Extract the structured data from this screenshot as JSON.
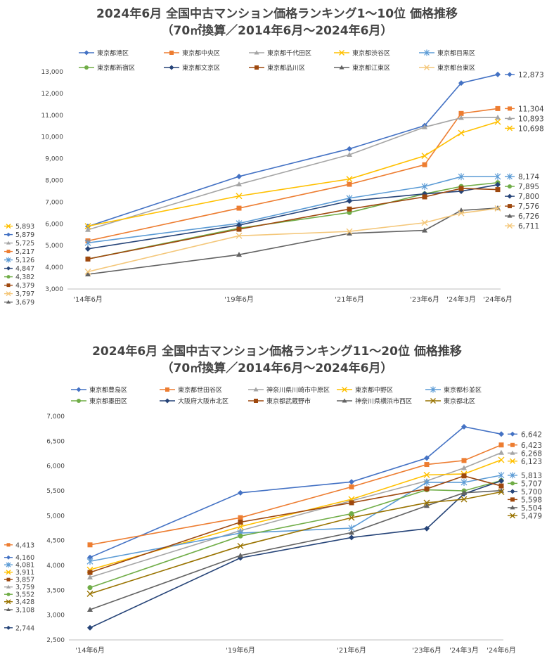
{
  "chart_data": [
    {
      "type": "line",
      "title": "2024年6月 全国中古マンション価格ランキング1～10位 価格推移",
      "subtitle": "（70㎡換算／2014年6月～2024年6月）",
      "categories": [
        "'14年6月",
        "'19年6月",
        "'21年6月",
        "'23年6月",
        "'24年3月",
        "'24年6月"
      ],
      "ylim": [
        3000,
        13000
      ],
      "yticks": [
        "3,000",
        "4,000",
        "5,000",
        "6,000",
        "7,000",
        "8,000",
        "9,000",
        "10,000",
        "11,000",
        "12,000",
        "13,000"
      ],
      "grid": false,
      "legend_position": "top",
      "series": [
        {
          "name": "東京都港区",
          "color": "#4472C4",
          "marker": "diamond",
          "values": [
            5879,
            8180,
            9450,
            10520,
            12480,
            12873
          ],
          "start_label": "5,879",
          "end_label": "12,873"
        },
        {
          "name": "東京都中央区",
          "color": "#ED7D31",
          "marker": "square",
          "values": [
            5217,
            6720,
            7820,
            8720,
            11080,
            11304
          ],
          "start_label": "5,217",
          "end_label": "11,304"
        },
        {
          "name": "東京都千代田区",
          "color": "#A5A5A5",
          "marker": "triangle",
          "values": [
            5725,
            7820,
            9180,
            10450,
            10880,
            10893
          ],
          "start_label": "5,725",
          "end_label": "10,893"
        },
        {
          "name": "東京都渋谷区",
          "color": "#FFC000",
          "marker": "x",
          "values": [
            5893,
            7280,
            8060,
            9130,
            10180,
            10698
          ],
          "start_label": "5,893",
          "end_label": "10,698"
        },
        {
          "name": "東京都目黒区",
          "color": "#5B9BD5",
          "marker": "star",
          "values": [
            5126,
            6020,
            7180,
            7720,
            8170,
            8174
          ],
          "start_label": "5,126",
          "end_label": "8,174"
        },
        {
          "name": "東京都新宿区",
          "color": "#70AD47",
          "marker": "circle",
          "values": [
            4382,
            5800,
            6520,
            7380,
            7720,
            7895
          ],
          "start_label": "4,382",
          "end_label": "7,895"
        },
        {
          "name": "東京都文京区",
          "color": "#264478",
          "marker": "diamond",
          "values": [
            4847,
            5940,
            7050,
            7380,
            7500,
            7800
          ],
          "start_label": "4,847",
          "end_label": "7,800"
        },
        {
          "name": "東京都品川区",
          "color": "#9E480E",
          "marker": "square",
          "values": [
            4379,
            5750,
            6680,
            7240,
            7630,
            7576
          ],
          "start_label": "4,379",
          "end_label": "7,576"
        },
        {
          "name": "東京都江東区",
          "color": "#636363",
          "marker": "triangle",
          "values": [
            3679,
            4580,
            5560,
            5700,
            6620,
            6726
          ],
          "start_label": "3,679",
          "end_label": "6,726"
        },
        {
          "name": "東京都台東区",
          "color": "#F4C77A",
          "marker": "x",
          "values": [
            3797,
            5450,
            5650,
            6050,
            6490,
            6711
          ],
          "start_label": "3,797",
          "end_label": "6,711"
        }
      ]
    },
    {
      "type": "line",
      "title": "2024年6月 全国中古マンション価格ランキング11～20位 価格推移",
      "subtitle": "（70㎡換算／2014年6月～2024年6月）",
      "categories": [
        "'14年6月",
        "'19年6月",
        "'21年6月",
        "'23年6月",
        "'24年3月",
        "'24年6月"
      ],
      "ylim": [
        2500,
        7000
      ],
      "yticks": [
        "2,500",
        "3,000",
        "3,500",
        "4,000",
        "4,500",
        "5,000",
        "5,500",
        "6,000",
        "6,500",
        "7,000"
      ],
      "grid": false,
      "legend_position": "top",
      "series": [
        {
          "name": "東京都豊島区",
          "color": "#4472C4",
          "marker": "diamond",
          "values": [
            4160,
            5460,
            5680,
            6160,
            6790,
            6642
          ],
          "start_label": "4,160",
          "end_label": "6,642"
        },
        {
          "name": "東京都世田谷区",
          "color": "#ED7D31",
          "marker": "square",
          "values": [
            4413,
            4960,
            5580,
            6030,
            6110,
            6423
          ],
          "start_label": "4,413",
          "end_label": "6,423"
        },
        {
          "name": "神奈川県川崎市中原区",
          "color": "#A5A5A5",
          "marker": "triangle",
          "values": [
            3759,
            4700,
            5300,
            5700,
            5960,
            6268
          ],
          "start_label": "3,759",
          "end_label": "6,268"
        },
        {
          "name": "東京都中野区",
          "color": "#FFC000",
          "marker": "x",
          "values": [
            3911,
            4780,
            5330,
            5820,
            5840,
            6123
          ],
          "start_label": "3,911",
          "end_label": "6,123"
        },
        {
          "name": "東京都杉並区",
          "color": "#5B9BD5",
          "marker": "star",
          "values": [
            4081,
            4650,
            4750,
            5670,
            5670,
            5813
          ],
          "start_label": "4,081",
          "end_label": "5,813"
        },
        {
          "name": "東京都墨田区",
          "color": "#70AD47",
          "marker": "circle",
          "values": [
            3552,
            4590,
            5040,
            5520,
            5500,
            5707
          ],
          "start_label": "3,552",
          "end_label": "5,707"
        },
        {
          "name": "大阪府大阪市北区",
          "color": "#264478",
          "marker": "diamond",
          "values": [
            2744,
            4150,
            4560,
            4740,
            5440,
            5700
          ],
          "start_label": "2,744",
          "end_label": "5,700"
        },
        {
          "name": "東京都武蔵野市",
          "color": "#9E480E",
          "marker": "square",
          "values": [
            3857,
            4870,
            5260,
            5540,
            5800,
            5598
          ],
          "start_label": "3,857",
          "end_label": "5,598"
        },
        {
          "name": "神奈川県横浜市西区",
          "color": "#636363",
          "marker": "triangle",
          "values": [
            3108,
            4200,
            4660,
            5200,
            5460,
            5504
          ],
          "start_label": "3,108",
          "end_label": "5,504"
        },
        {
          "name": "東京都北区",
          "color": "#997300",
          "marker": "x",
          "values": [
            3428,
            4390,
            4960,
            5260,
            5330,
            5479
          ],
          "start_label": "3,428",
          "end_label": "5,479"
        }
      ]
    }
  ]
}
